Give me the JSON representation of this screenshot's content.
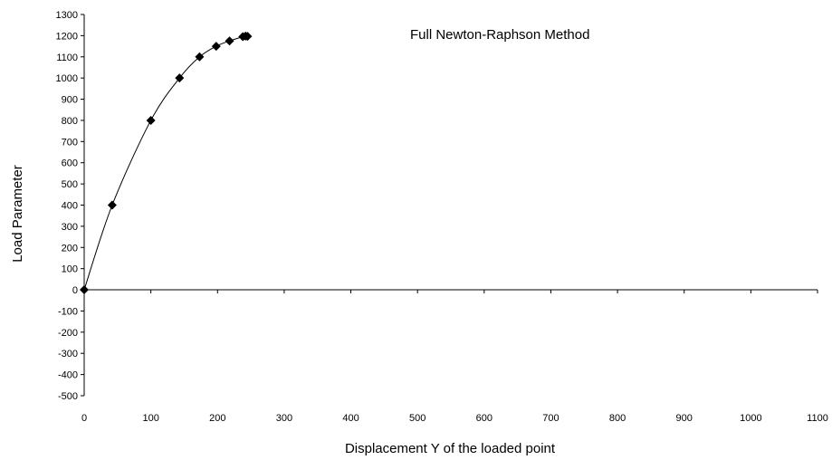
{
  "chart_data": {
    "type": "scatter",
    "title": "",
    "annotation": "Full Newton-Raphson Method",
    "xlabel": "Displacement Y of the loaded point",
    "ylabel": "Load Parameter",
    "xlim": [
      0,
      1100
    ],
    "ylim": [
      -500,
      1300
    ],
    "xticks": [
      0,
      100,
      200,
      300,
      400,
      500,
      600,
      700,
      800,
      900,
      1000,
      1100
    ],
    "yticks": [
      1300,
      1200,
      1100,
      1000,
      900,
      800,
      700,
      600,
      500,
      400,
      300,
      200,
      100,
      0,
      -100,
      -200,
      -300,
      -400,
      -500
    ],
    "grid": false,
    "legend": "none",
    "series": [
      {
        "marker": "diamond",
        "line": "smooth",
        "color": "#000000",
        "points": [
          {
            "x": 0,
            "y": 0
          },
          {
            "x": 42,
            "y": 400
          },
          {
            "x": 100,
            "y": 800
          },
          {
            "x": 143,
            "y": 1000
          },
          {
            "x": 173,
            "y": 1100
          },
          {
            "x": 198,
            "y": 1150
          },
          {
            "x": 218,
            "y": 1175
          },
          {
            "x": 238,
            "y": 1195
          },
          {
            "x": 242,
            "y": 1198
          },
          {
            "x": 245,
            "y": 1197
          }
        ]
      }
    ]
  }
}
